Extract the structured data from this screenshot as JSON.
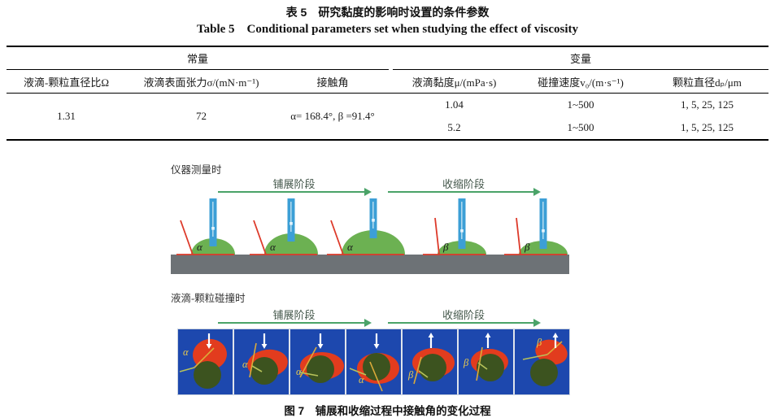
{
  "page": {
    "table_title_zh": "表 5　研究黏度的影响时设置的条件参数",
    "table_title_en": "Table 5　Conditional parameters set when studying the effect of viscosity",
    "figure_caption": "图 7　铺展和收缩过程中接触角的变化过程"
  },
  "table": {
    "groups": {
      "constants": "常量",
      "variables": "变量"
    },
    "columns": [
      "液滴-颗粒直径比Ω",
      "液滴表面张力σ/(mN·m⁻¹)",
      "接触角",
      "液滴黏度μ/(mPa·s)",
      "碰撞速度v₀/(m·s⁻¹)",
      "颗粒直径dₚ/μm"
    ],
    "constants": {
      "diameter_ratio": "1.31",
      "surface_tension": "72",
      "contact_angle": "α= 168.4°, β =91.4°"
    },
    "variables": [
      {
        "viscosity": "1.04",
        "velocity": "1~500",
        "particle_diameter": "1, 5, 25, 125"
      },
      {
        "viscosity": "5.2",
        "velocity": "1~500",
        "particle_diameter": "1, 5, 25, 125"
      }
    ]
  },
  "figure": {
    "instrument": {
      "label": "仪器测量时",
      "spreading": "铺展阶段",
      "retraction": "收缩阶段",
      "droplets": [
        {
          "label": "α"
        },
        {
          "label": "α"
        },
        {
          "label": "α"
        },
        {
          "label": "β"
        },
        {
          "label": "β"
        }
      ]
    },
    "collision": {
      "label": "液滴-颗粒碰撞时",
      "spreading": "铺展阶段",
      "retraction": "收缩阶段",
      "panels": [
        {
          "label": "α",
          "arrow": "down"
        },
        {
          "label": "α",
          "arrow": "down"
        },
        {
          "label": "α",
          "arrow": "down"
        },
        {
          "label": "α",
          "arrow": "down"
        },
        {
          "label": "β",
          "arrow": "up"
        },
        {
          "label": "β",
          "arrow": "up"
        },
        {
          "label": "β",
          "arrow": "up"
        }
      ]
    },
    "colors": {
      "arrow_green": "#4aa368",
      "needle_blue": "#3c9fd6",
      "needle_highlight": "#c3e2f2",
      "droplet_green": "#6cb152",
      "substrate_gray": "#6d7276",
      "angle_red": "#dd3a2a",
      "panel_blue": "#1d48ae",
      "particle_olive": "#3c531f",
      "splash_red": "#e23c1e",
      "angle_yellow": "#dcab3a",
      "angle_yellow_green": "#b7c25a",
      "label_yellow": "#e8c94e",
      "arrow_white": "#ffffff",
      "greek_label_dark": "#1b1b1b"
    }
  }
}
